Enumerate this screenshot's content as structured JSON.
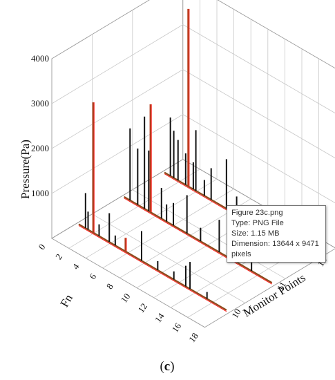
{
  "chart_data": {
    "type": "3d-bar",
    "zlabel": "Pressure(Pa)",
    "xlabel": "Fn",
    "ylabel": "Monitor Points",
    "z_ticks": [
      "0",
      "1000",
      "2000",
      "3000",
      "4000"
    ],
    "x_ticks": [
      "0",
      "2",
      "4",
      "6",
      "8",
      "10",
      "12",
      "14",
      "16",
      "18"
    ],
    "y_ticks": [
      "10",
      "11",
      "12"
    ],
    "zlim": [
      0,
      4000
    ],
    "xlim": [
      0,
      18
    ],
    "series": [
      {
        "name": "10",
        "points": [
          {
            "fn": 1.0,
            "p": 780,
            "c": "black"
          },
          {
            "fn": 1.3,
            "p": 400,
            "c": "black"
          },
          {
            "fn": 1.9,
            "p": 2900,
            "c": "red"
          },
          {
            "fn": 2.6,
            "p": 260,
            "c": "black"
          },
          {
            "fn": 3.8,
            "p": 640,
            "c": "black"
          },
          {
            "fn": 4.5,
            "p": 220,
            "c": "black"
          },
          {
            "fn": 5.7,
            "p": 300,
            "c": "red"
          },
          {
            "fn": 7.6,
            "p": 660,
            "c": "black"
          },
          {
            "fn": 9.5,
            "p": 200,
            "c": "black"
          },
          {
            "fn": 11.4,
            "p": 180,
            "c": "black"
          },
          {
            "fn": 12.8,
            "p": 460,
            "c": "black"
          },
          {
            "fn": 13.3,
            "p": 600,
            "c": "black"
          },
          {
            "fn": 15.3,
            "p": 150,
            "c": "black"
          }
        ]
      },
      {
        "name": "11",
        "points": [
          {
            "fn": 0.9,
            "p": 1600,
            "c": "black"
          },
          {
            "fn": 1.8,
            "p": 1250,
            "c": "black"
          },
          {
            "fn": 2.6,
            "p": 2050,
            "c": "black"
          },
          {
            "fn": 3.1,
            "p": 1350,
            "c": "black"
          },
          {
            "fn": 3.3,
            "p": 2400,
            "c": "red"
          },
          {
            "fn": 4.6,
            "p": 680,
            "c": "black"
          },
          {
            "fn": 5.2,
            "p": 380,
            "c": "black"
          },
          {
            "fn": 6.0,
            "p": 500,
            "c": "black"
          },
          {
            "fn": 7.6,
            "p": 850,
            "c": "black"
          },
          {
            "fn": 9.2,
            "p": 300,
            "c": "black"
          },
          {
            "fn": 11.4,
            "p": 720,
            "c": "black"
          },
          {
            "fn": 13.4,
            "p": 450,
            "c": "black"
          },
          {
            "fn": 15.2,
            "p": 250,
            "c": "black"
          }
        ]
      },
      {
        "name": "12",
        "points": [
          {
            "fn": 0.9,
            "p": 1300,
            "c": "black"
          },
          {
            "fn": 1.3,
            "p": 1050,
            "c": "black"
          },
          {
            "fn": 1.8,
            "p": 900,
            "c": "black"
          },
          {
            "fn": 2.7,
            "p": 700,
            "c": "black"
          },
          {
            "fn": 3.0,
            "p": 3950,
            "c": "red"
          },
          {
            "fn": 3.6,
            "p": 600,
            "c": "black"
          },
          {
            "fn": 3.9,
            "p": 1350,
            "c": "black"
          },
          {
            "fn": 4.9,
            "p": 350,
            "c": "black"
          },
          {
            "fn": 5.7,
            "p": 700,
            "c": "black"
          },
          {
            "fn": 7.5,
            "p": 1100,
            "c": "black"
          },
          {
            "fn": 8.7,
            "p": 400,
            "c": "black"
          },
          {
            "fn": 11.5,
            "p": 300,
            "c": "black"
          }
        ]
      }
    ]
  },
  "panel_label": "c",
  "tooltip": {
    "name": "Figure 23c.png",
    "type": "Type: PNG File",
    "size": "Size: 1.15 MB",
    "dimension": "Dimension: 13644 x 9471 pixels"
  }
}
